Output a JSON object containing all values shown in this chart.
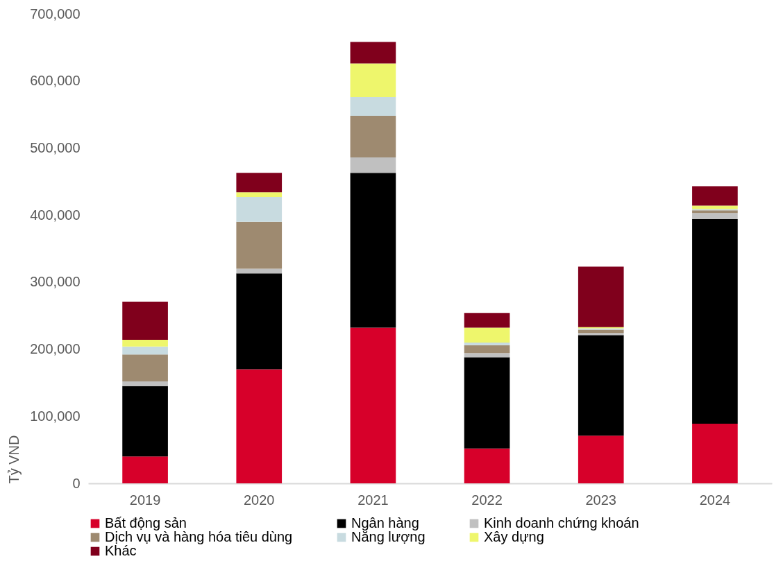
{
  "chart_data": {
    "type": "bar",
    "stacked": true,
    "ylabel": "Tỷ VND",
    "categories": [
      "2019",
      "2020",
      "2021",
      "2022",
      "2023",
      "2024"
    ],
    "ylim": [
      0,
      700000
    ],
    "yticks": [
      0,
      {
        "value": 100000,
        "label": "100,000"
      },
      {
        "value": 200000,
        "label": "200,000"
      },
      {
        "value": 300000,
        "label": "300,000"
      },
      {
        "value": 400000,
        "label": "400,000"
      },
      {
        "value": 500000,
        "label": "500,000"
      },
      {
        "value": 600000,
        "label": "600,000"
      },
      {
        "value": 700000,
        "label": "700,000"
      }
    ],
    "grid": false,
    "legend": "bottom",
    "series": [
      {
        "name": "Bất động sản",
        "color": "#d7002a",
        "values": [
          40000,
          170000,
          232000,
          52000,
          71000,
          89000
        ]
      },
      {
        "name": "Ngân hàng",
        "color": "#000000",
        "values": [
          105000,
          143000,
          231000,
          136000,
          150000,
          305000
        ]
      },
      {
        "name": "Kinh doanh chứng khoán",
        "color": "#c0c0c0",
        "values": [
          7000,
          7000,
          23000,
          6000,
          3000,
          9000
        ]
      },
      {
        "name": "Dịch vụ và hàng hóa tiêu dùng",
        "color": "#9e8a70",
        "values": [
          40000,
          70000,
          62000,
          12000,
          5000,
          4000
        ]
      },
      {
        "name": "Năng lượng",
        "color": "#c8dbe0",
        "values": [
          12000,
          37000,
          28000,
          4000,
          2000,
          2000
        ]
      },
      {
        "name": "Xây dựng",
        "color": "#eef66c",
        "values": [
          10000,
          7000,
          50000,
          22000,
          2000,
          5000
        ]
      },
      {
        "name": "Khác",
        "color": "#80001c",
        "values": [
          57000,
          29000,
          32000,
          22000,
          90000,
          29000
        ]
      }
    ]
  }
}
